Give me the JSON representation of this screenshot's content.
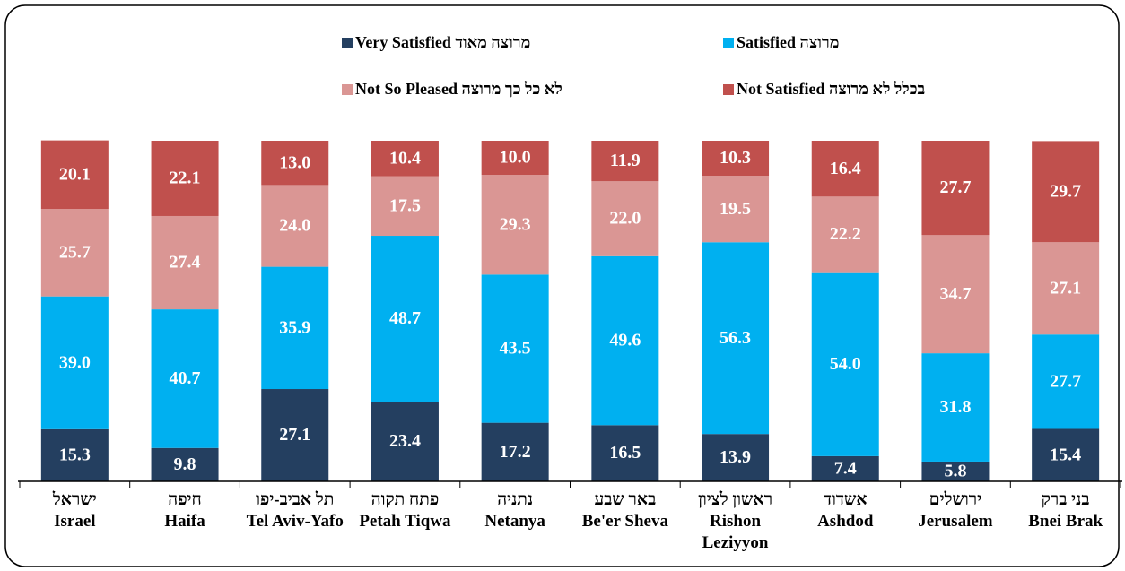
{
  "chart_data": {
    "type": "stacked_bar",
    "categories": [
      [
        "ישראל",
        "Israel"
      ],
      [
        "חיפה",
        "Haifa"
      ],
      [
        "תל אביב-יפו",
        "Tel Aviv-Yafo"
      ],
      [
        "פתח תקוה",
        "Petah Tiqwa"
      ],
      [
        "נתניה",
        "Netanya"
      ],
      [
        "באר שבע",
        "Be'er Sheva"
      ],
      [
        "ראשון לציון",
        "Rishon Leziyyon"
      ],
      [
        "אשדוד",
        "Ashdod"
      ],
      [
        "ירושלים",
        "Jerusalem"
      ],
      [
        "בני ברק",
        "Bnei Brak"
      ]
    ],
    "ylim": [
      0,
      100
    ],
    "series": [
      {
        "name": "Very Satisfied מרוצה מאוד",
        "color": "#243f60",
        "values": [
          15.3,
          9.8,
          27.1,
          23.4,
          17.2,
          16.5,
          13.9,
          7.4,
          5.8,
          15.4
        ],
        "value_labels": [
          "15.3",
          "9.8",
          "27.1",
          "23.4",
          "17.2",
          "16.5",
          "13.9",
          "7.4",
          "5.8",
          "15.4"
        ]
      },
      {
        "name": "Satisfied מרוצה",
        "color": "#00b0f0",
        "values": [
          39.0,
          40.7,
          35.9,
          48.7,
          43.5,
          49.6,
          56.3,
          54.0,
          31.8,
          27.7
        ],
        "value_labels": [
          "39.0",
          "40.7",
          "35.9",
          "48.7",
          "43.5",
          "49.6",
          "56.3",
          "54.0",
          "31.8",
          "27.7"
        ]
      },
      {
        "name": "Not So Pleased לא כל כך מרוצה",
        "color": "#da9694",
        "values": [
          25.7,
          27.4,
          24.0,
          17.5,
          29.3,
          22.0,
          19.5,
          22.2,
          34.7,
          27.1
        ],
        "value_labels": [
          "25.7",
          "27.4",
          "24.0",
          "17.5",
          "29.3",
          "22.0",
          "19.5",
          "22.2",
          "34.7",
          "27.1"
        ]
      },
      {
        "name": "Not Satisfied בכלל לא מרוצה",
        "color": "#c0504d",
        "values": [
          20.1,
          22.1,
          13.0,
          10.4,
          10.0,
          11.9,
          10.3,
          16.4,
          27.7,
          29.7
        ],
        "value_labels": [
          "20.1",
          "22.1",
          "13.0",
          "10.4",
          "10.0",
          "11.9",
          "10.3",
          "16.4",
          "27.7",
          "29.7"
        ]
      }
    ]
  }
}
